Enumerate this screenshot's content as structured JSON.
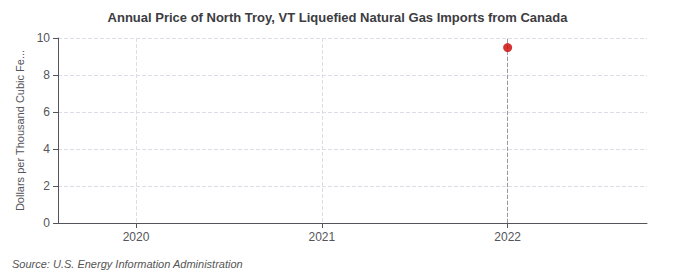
{
  "chart_data": {
    "type": "scatter",
    "title": "Annual Price of North Troy, VT Liquefied Natural Gas Imports from Canada",
    "ylabel": "Dollars per Thousand Cubic Fe...",
    "annotation": "Source: U.S. Energy Information Administration",
    "x": [
      2022
    ],
    "values": [
      9.48
    ],
    "color": "#cc0000",
    "xlim": [
      2019.58,
      2022.75
    ],
    "xticks": [
      2020,
      2021,
      2022
    ],
    "ylim": [
      0,
      10
    ],
    "yticks": [
      0,
      2,
      4,
      6,
      8,
      10
    ],
    "grid": true
  }
}
